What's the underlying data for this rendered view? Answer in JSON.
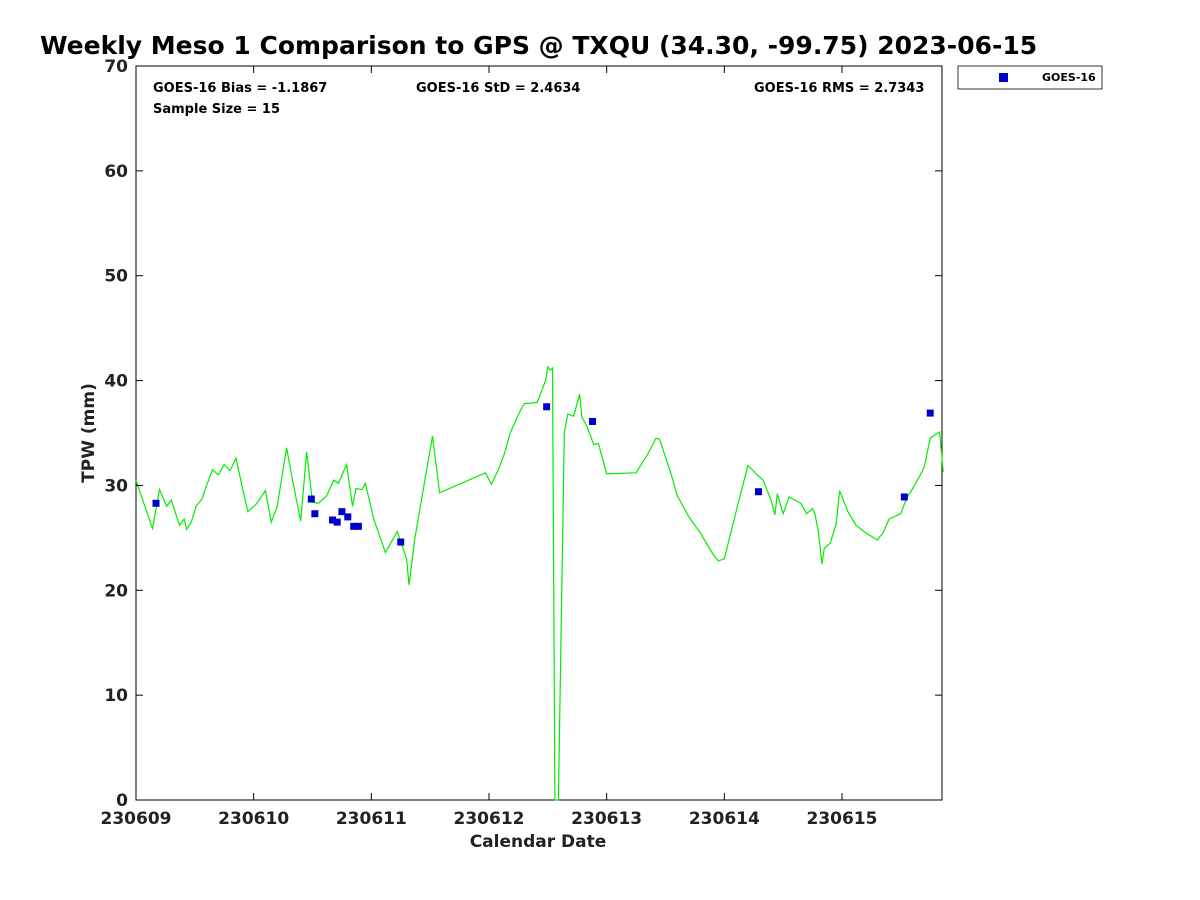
{
  "chart_data": {
    "type": "scatter",
    "title": "Weekly Meso 1 Comparison to GPS @ TXQU (34.30, -99.75) 2023-06-15",
    "xlabel": "Calendar Date",
    "ylabel": "TPW (mm)",
    "ylim": [
      0,
      70
    ],
    "yticks": [
      0,
      10,
      20,
      30,
      40,
      50,
      60,
      70
    ],
    "xlim": [
      230609.0,
      230615.85
    ],
    "xticks": [
      {
        "v": 230609,
        "label": "230609"
      },
      {
        "v": 230610,
        "label": "230610"
      },
      {
        "v": 230611,
        "label": "230611"
      },
      {
        "v": 230612,
        "label": "230612"
      },
      {
        "v": 230613,
        "label": "230613"
      },
      {
        "v": 230614,
        "label": "230614"
      },
      {
        "v": 230615,
        "label": "230615"
      }
    ],
    "grid": false,
    "legend_position": "outside-top-right",
    "stats": {
      "bias": "GOES-16 Bias = -1.1867",
      "std": "GOES-16 StD = 2.4634",
      "rms": "GOES-16 RMS = 2.7343",
      "sample": "Sample Size = 15"
    },
    "series": [
      {
        "name": "GOES-16",
        "kind": "points",
        "color": "#0000cc",
        "points": [
          [
            230609.17,
            28.3
          ],
          [
            230610.49,
            28.7
          ],
          [
            230610.52,
            27.3
          ],
          [
            230610.67,
            26.7
          ],
          [
            230610.71,
            26.5
          ],
          [
            230610.75,
            27.5
          ],
          [
            230610.8,
            27.0
          ],
          [
            230610.85,
            26.1
          ],
          [
            230610.89,
            26.1
          ],
          [
            230611.25,
            24.6
          ],
          [
            230612.49,
            37.5
          ],
          [
            230612.88,
            36.1
          ],
          [
            230614.29,
            29.4
          ],
          [
            230615.53,
            28.9
          ],
          [
            230615.75,
            36.9
          ]
        ]
      },
      {
        "kind": "line",
        "color": "#00ee00",
        "points": [
          [
            230609.0,
            30.5
          ],
          [
            230609.06,
            28.5
          ],
          [
            230609.14,
            25.9
          ],
          [
            230609.2,
            29.6
          ],
          [
            230609.26,
            28.0
          ],
          [
            230609.3,
            28.6
          ],
          [
            230609.37,
            26.2
          ],
          [
            230609.41,
            26.8
          ],
          [
            230609.43,
            25.8
          ],
          [
            230609.47,
            26.5
          ],
          [
            230609.51,
            28.0
          ],
          [
            230609.56,
            28.7
          ],
          [
            230609.6,
            30.0
          ],
          [
            230609.65,
            31.5
          ],
          [
            230609.7,
            31.0
          ],
          [
            230609.75,
            32.0
          ],
          [
            230609.8,
            31.4
          ],
          [
            230609.85,
            32.6
          ],
          [
            230609.9,
            30.0
          ],
          [
            230609.95,
            27.5
          ],
          [
            230610.02,
            28.2
          ],
          [
            230610.1,
            29.5
          ],
          [
            230610.15,
            26.5
          ],
          [
            230610.2,
            28.0
          ],
          [
            230610.28,
            33.6
          ],
          [
            230610.33,
            30.5
          ],
          [
            230610.4,
            26.6
          ],
          [
            230610.45,
            33.2
          ],
          [
            230610.5,
            28.4
          ],
          [
            230610.55,
            28.3
          ],
          [
            230610.62,
            29.0
          ],
          [
            230610.68,
            30.5
          ],
          [
            230610.72,
            30.2
          ],
          [
            230610.79,
            32.0
          ],
          [
            230610.84,
            28.0
          ],
          [
            230610.87,
            29.7
          ],
          [
            230610.92,
            29.6
          ],
          [
            230610.95,
            30.2
          ],
          [
            230611.02,
            26.8
          ],
          [
            230611.12,
            23.6
          ],
          [
            230611.22,
            25.6
          ],
          [
            230611.3,
            23.0
          ],
          [
            230611.32,
            20.5
          ],
          [
            230611.37,
            25.0
          ],
          [
            230611.52,
            34.7
          ],
          [
            230611.58,
            29.3
          ],
          [
            230611.97,
            31.2
          ],
          [
            230612.02,
            30.1
          ],
          [
            230612.08,
            31.5
          ],
          [
            230612.13,
            33.0
          ],
          [
            230612.18,
            35.0
          ],
          [
            230612.26,
            37.0
          ],
          [
            230612.3,
            37.8
          ],
          [
            230612.41,
            37.9
          ],
          [
            230612.48,
            40.0
          ],
          [
            230612.5,
            41.3
          ],
          [
            230612.52,
            41.0
          ],
          [
            230612.54,
            41.2
          ],
          [
            230612.56,
            0.0
          ],
          [
            230612.59,
            0.0
          ],
          [
            230612.64,
            35.0
          ],
          [
            230612.67,
            36.8
          ],
          [
            230612.72,
            36.6
          ],
          [
            230612.77,
            38.7
          ],
          [
            230612.79,
            36.5
          ],
          [
            230612.83,
            35.7
          ],
          [
            230612.89,
            33.9
          ],
          [
            230612.93,
            34.0
          ],
          [
            230613.0,
            31.1
          ],
          [
            230613.25,
            31.2
          ],
          [
            230613.35,
            33.0
          ],
          [
            230613.42,
            34.5
          ],
          [
            230613.45,
            34.4
          ],
          [
            230613.55,
            31.0
          ],
          [
            230613.6,
            29.0
          ],
          [
            230613.7,
            27.0
          ],
          [
            230613.8,
            25.4
          ],
          [
            230613.9,
            23.5
          ],
          [
            230613.95,
            22.8
          ],
          [
            230614.0,
            23.0
          ],
          [
            230614.1,
            27.5
          ],
          [
            230614.2,
            31.9
          ],
          [
            230614.28,
            31.0
          ],
          [
            230614.33,
            30.5
          ],
          [
            230614.4,
            28.5
          ],
          [
            230614.43,
            27.2
          ],
          [
            230614.45,
            29.2
          ],
          [
            230614.5,
            27.3
          ],
          [
            230614.55,
            28.9
          ],
          [
            230614.6,
            28.6
          ],
          [
            230614.65,
            28.3
          ],
          [
            230614.7,
            27.3
          ],
          [
            230614.75,
            27.8
          ],
          [
            230614.77,
            27.3
          ],
          [
            230614.8,
            25.5
          ],
          [
            230614.83,
            22.5
          ],
          [
            230614.85,
            24.0
          ],
          [
            230614.9,
            24.5
          ],
          [
            230614.95,
            26.3
          ],
          [
            230614.98,
            29.5
          ],
          [
            230615.05,
            27.5
          ],
          [
            230615.12,
            26.2
          ],
          [
            230615.2,
            25.5
          ],
          [
            230615.3,
            24.8
          ],
          [
            230615.35,
            25.5
          ],
          [
            230615.4,
            26.8
          ],
          [
            230615.5,
            27.3
          ],
          [
            230615.55,
            28.8
          ],
          [
            230615.6,
            29.7
          ],
          [
            230615.65,
            30.7
          ],
          [
            230615.68,
            31.3
          ],
          [
            230615.7,
            31.8
          ],
          [
            230615.75,
            34.5
          ],
          [
            230615.8,
            34.9
          ],
          [
            230615.83,
            35.1
          ],
          [
            230615.86,
            31.3
          ]
        ]
      }
    ]
  }
}
